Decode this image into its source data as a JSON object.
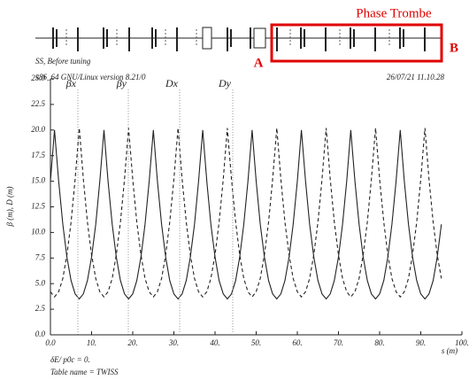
{
  "chart_data": {
    "type": "line",
    "header": "SS, Before tuning",
    "system_info": "x86_64 GNU/Linux version 8.21/0",
    "timestamp": "26/07/21 11.10.28",
    "annotation_box": "Phase Trombe",
    "marker_a": "A",
    "marker_b": "B",
    "ylabel": "β (m), D (m)",
    "xlabel": "s (m)",
    "footer_1": "δE/ p0c = 0.",
    "footer_2": "Table name = TWISS",
    "x": [
      0,
      1,
      2,
      3,
      4,
      5,
      6,
      7,
      8,
      9,
      10,
      11,
      12,
      13,
      14,
      15,
      16,
      17,
      18,
      19,
      20,
      21,
      22,
      23,
      24,
      25,
      26,
      27,
      28,
      29,
      30,
      31,
      32,
      33,
      34,
      35,
      36,
      37,
      38,
      39,
      40,
      41,
      42,
      43,
      44,
      45,
      46,
      47,
      48,
      49,
      50,
      51,
      52,
      53,
      54,
      55,
      56,
      57,
      58,
      59,
      60,
      61,
      62,
      63,
      64,
      65,
      66,
      67,
      68,
      69,
      70,
      71,
      72,
      73,
      74,
      75,
      76,
      77,
      78,
      79,
      80,
      81,
      82,
      83,
      84,
      85,
      86,
      87,
      88,
      89,
      90,
      91,
      92,
      93,
      94,
      95
    ],
    "series": [
      {
        "name": "βx",
        "color": "#222222",
        "dashed": false,
        "values": [
          15.0,
          20.0,
          15.0,
          10.8,
          7.6,
          5.3,
          4.0,
          3.5,
          4.0,
          5.3,
          7.6,
          10.8,
          15.0,
          20.0,
          15.0,
          10.8,
          7.6,
          5.3,
          4.0,
          3.5,
          4.0,
          5.3,
          7.6,
          10.8,
          15.0,
          20.0,
          15.0,
          10.8,
          7.6,
          5.3,
          4.0,
          3.5,
          4.0,
          5.3,
          7.6,
          10.8,
          15.0,
          20.0,
          15.0,
          10.8,
          7.6,
          5.3,
          4.0,
          3.5,
          4.0,
          5.3,
          7.6,
          10.8,
          15.0,
          20.0,
          15.0,
          10.8,
          7.6,
          5.3,
          4.0,
          3.5,
          4.0,
          5.3,
          7.6,
          10.8,
          15.0,
          20.0,
          15.0,
          10.8,
          7.6,
          5.3,
          4.0,
          3.5,
          4.0,
          5.3,
          7.6,
          10.8,
          15.0,
          20.0,
          15.0,
          10.8,
          7.6,
          5.3,
          4.0,
          3.5,
          4.0,
          5.3,
          7.6,
          10.8,
          15.0,
          20.0,
          15.0,
          10.8,
          7.6,
          5.3,
          4.0,
          3.5,
          4.0,
          5.3,
          7.6,
          10.8
        ]
      },
      {
        "name": "βy",
        "color": "#222222",
        "dashed": true,
        "values": [
          4.2,
          3.7,
          4.2,
          5.5,
          7.8,
          11.0,
          15.2,
          20.2,
          15.2,
          11.0,
          7.8,
          5.5,
          4.2,
          3.7,
          4.2,
          5.5,
          7.8,
          11.0,
          15.2,
          20.2,
          15.2,
          11.0,
          7.8,
          5.5,
          4.2,
          3.7,
          4.2,
          5.5,
          7.8,
          11.0,
          15.2,
          20.2,
          15.2,
          11.0,
          7.8,
          5.5,
          4.2,
          3.7,
          4.2,
          5.5,
          7.8,
          11.0,
          15.2,
          20.2,
          15.2,
          11.0,
          7.8,
          5.5,
          4.2,
          3.7,
          4.2,
          5.5,
          7.8,
          11.0,
          15.2,
          20.2,
          15.2,
          11.0,
          7.8,
          5.5,
          4.2,
          3.7,
          4.2,
          5.5,
          7.8,
          11.0,
          15.2,
          20.2,
          15.2,
          11.0,
          7.8,
          5.5,
          4.2,
          3.7,
          4.2,
          5.5,
          7.8,
          11.0,
          15.2,
          20.2,
          15.2,
          11.0,
          7.8,
          5.5,
          4.2,
          3.7,
          4.2,
          5.5,
          7.8,
          11.0,
          15.2,
          20.2,
          15.2,
          11.0,
          7.8,
          5.5
        ]
      },
      {
        "name": "Dx",
        "color": "#222222",
        "dashed": false,
        "x": [
          0,
          95
        ],
        "values": [
          0,
          0
        ]
      },
      {
        "name": "Dy",
        "color": "#222222",
        "dashed": true,
        "x": [
          0,
          95
        ],
        "values": [
          0,
          0
        ]
      }
    ],
    "xlim": [
      0,
      100
    ],
    "xticks": [
      {
        "value": 0,
        "label": "0.0"
      },
      {
        "value": 10,
        "label": "10."
      },
      {
        "value": 20,
        "label": "20."
      },
      {
        "value": 30,
        "label": "30."
      },
      {
        "value": 40,
        "label": "40."
      },
      {
        "value": 50,
        "label": "50."
      },
      {
        "value": 60,
        "label": "60."
      },
      {
        "value": 70,
        "label": "70."
      },
      {
        "value": 80,
        "label": "80."
      },
      {
        "value": 90,
        "label": "90."
      },
      {
        "value": 100,
        "label": "100."
      }
    ],
    "ylim": [
      0,
      25
    ],
    "yticks": [
      {
        "value": 0,
        "label": "0.0"
      },
      2.5,
      {
        "value": 5,
        "label": "5.0"
      },
      7.5,
      {
        "value": 10,
        "label": "10.0"
      },
      12.5,
      {
        "value": 15,
        "label": "15.0"
      },
      17.5,
      {
        "value": 20,
        "label": "20.0"
      },
      22.5,
      {
        "value": 25,
        "label": "25.0"
      }
    ]
  }
}
